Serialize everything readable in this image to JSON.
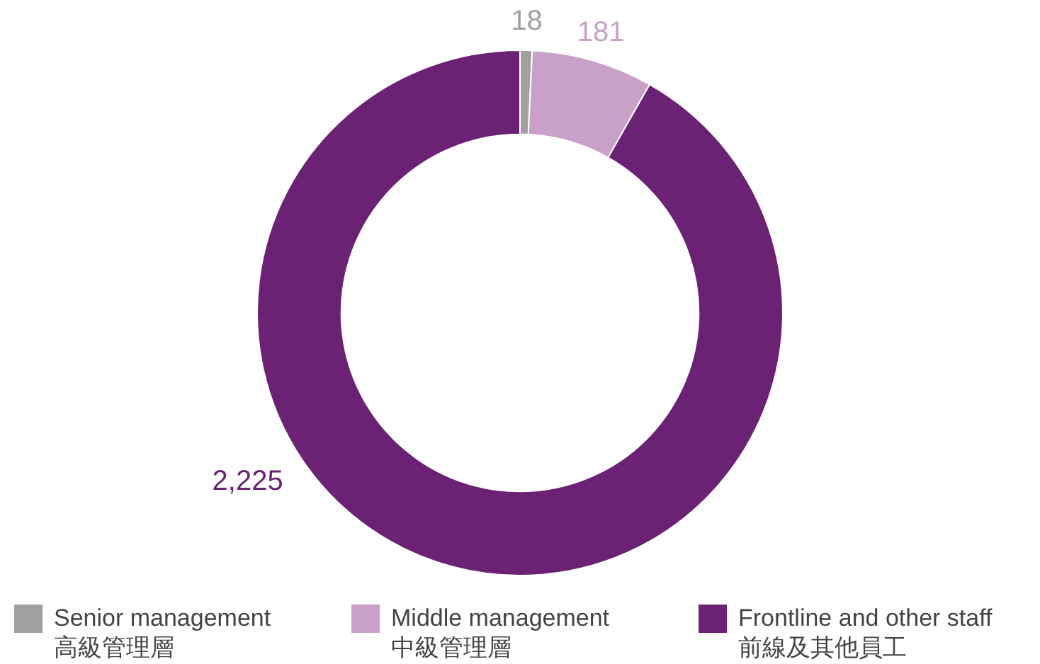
{
  "chart_data": {
    "type": "donut",
    "categories": [
      "Senior management\n高級管理層",
      "Middle management\n中級管理層",
      "Frontline and other staff\n前線及其他員工"
    ],
    "values": [
      18,
      181,
      2225
    ],
    "colors": [
      "#a0a09f",
      "#c8a0c8",
      "#6b2274"
    ],
    "value_labels": [
      "18",
      "181",
      "2,225"
    ],
    "legend": "bottom"
  }
}
